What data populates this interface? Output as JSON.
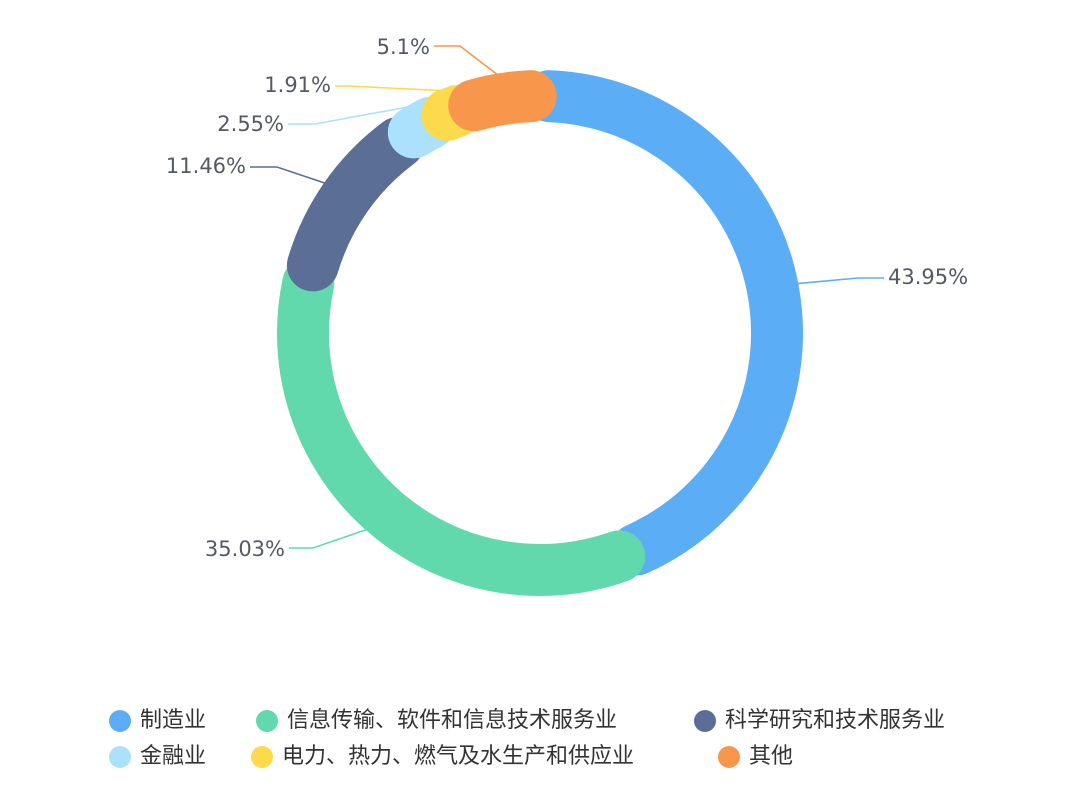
{
  "chart_data": {
    "type": "pie",
    "variant": "donut",
    "title": "",
    "series": [
      {
        "name": "制造业",
        "value": 43.95,
        "label": "43.95%",
        "color": "#5BAEF5"
      },
      {
        "name": "信息传输、软件和信息技术服务业",
        "value": 35.03,
        "label": "35.03%",
        "color": "#62D9AD"
      },
      {
        "name": "科学研究和技术服务业",
        "value": 11.46,
        "label": "11.46%",
        "color": "#5B6E96"
      },
      {
        "name": "金融业",
        "value": 2.55,
        "label": "2.55%",
        "color": "#ACE1FC"
      },
      {
        "name": "电力、热力、燃气及水生产和供应业",
        "value": 1.91,
        "label": "1.91%",
        "color": "#FCDA4C"
      },
      {
        "name": "其他",
        "value": 5.1,
        "label": "5.1%",
        "color": "#F8974C"
      }
    ],
    "legend_position": "bottom"
  }
}
